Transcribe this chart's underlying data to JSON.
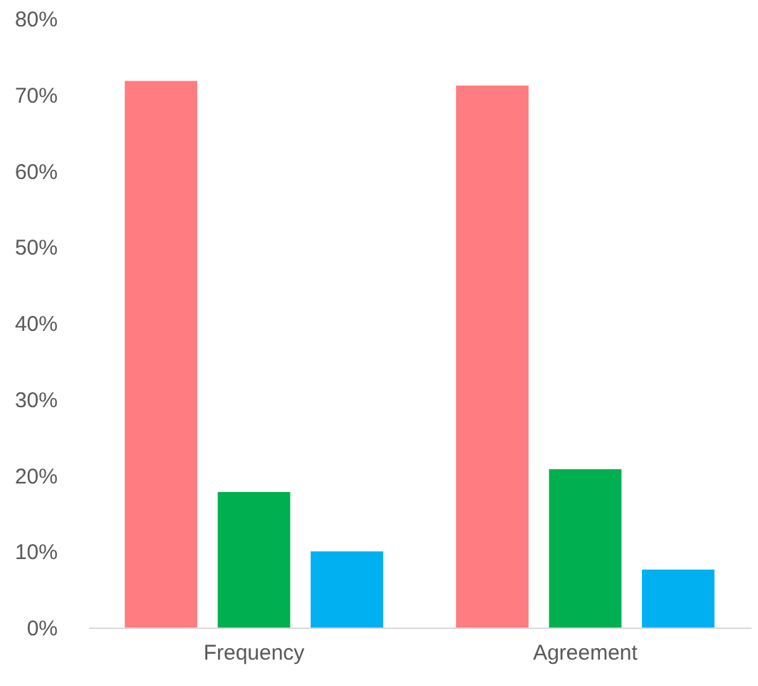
{
  "chart_data": {
    "type": "bar",
    "categories": [
      "Frequency",
      "Agreement"
    ],
    "series": [
      {
        "color": "#ff7c80",
        "values": [
          71.8,
          71.2
        ]
      },
      {
        "color": "#00b050",
        "values": [
          17.8,
          20.8
        ]
      },
      {
        "color": "#00b0f0",
        "values": [
          10,
          7.6
        ]
      }
    ],
    "ylim": [
      0,
      80
    ],
    "yticks": [
      {
        "value": 0,
        "label": "0%"
      },
      {
        "value": 10,
        "label": "10%"
      },
      {
        "value": 20,
        "label": "20%"
      },
      {
        "value": 30,
        "label": "30%"
      },
      {
        "value": 40,
        "label": "40%"
      },
      {
        "value": 50,
        "label": "50%"
      },
      {
        "value": 60,
        "label": "60%"
      },
      {
        "value": 70,
        "label": "70%"
      },
      {
        "value": 80,
        "label": "80%"
      }
    ],
    "grid": false
  }
}
